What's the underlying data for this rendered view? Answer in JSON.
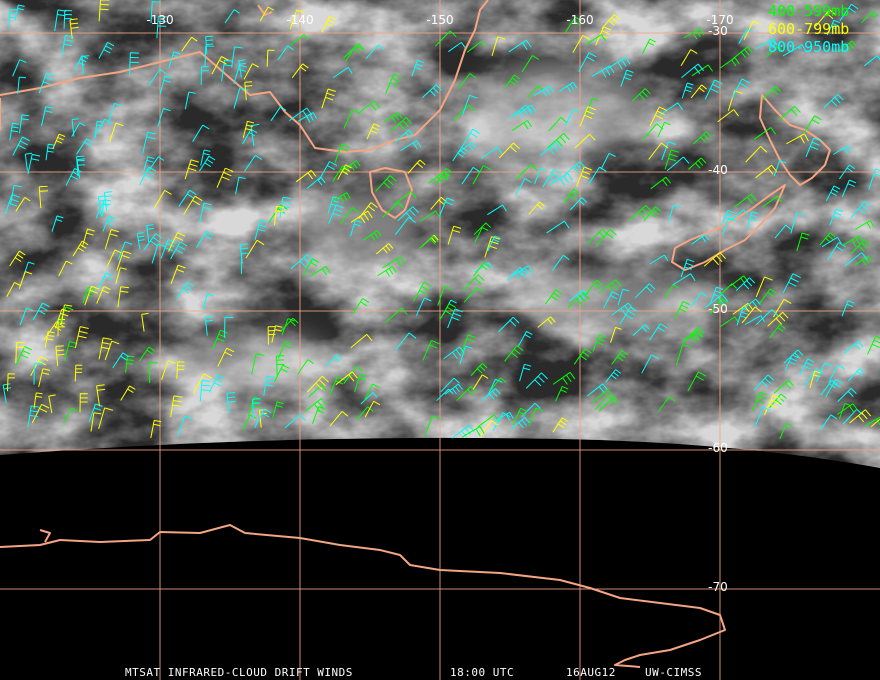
{
  "map": {
    "lon_lines": [
      -130,
      -140,
      -150,
      -160,
      -170
    ],
    "lat_lines": [
      -30,
      -40,
      -50,
      -60,
      -70
    ],
    "lonlim": [
      -118.57,
      -181.43
    ],
    "latlim": [
      -27.63,
      -76.55
    ]
  },
  "legend": [
    {
      "label": "400-599mb",
      "color": "#00ff00"
    },
    {
      "label": "600-799mb",
      "color": "#ffff00"
    },
    {
      "label": "800-950mb",
      "color": "#00ffff"
    }
  ],
  "footer": {
    "product": "MTSAT INFRARED-CLOUD DRIFT WINDS",
    "time": "18:00 UTC",
    "date": "16AUG12",
    "source": "UW-CIMSS"
  }
}
